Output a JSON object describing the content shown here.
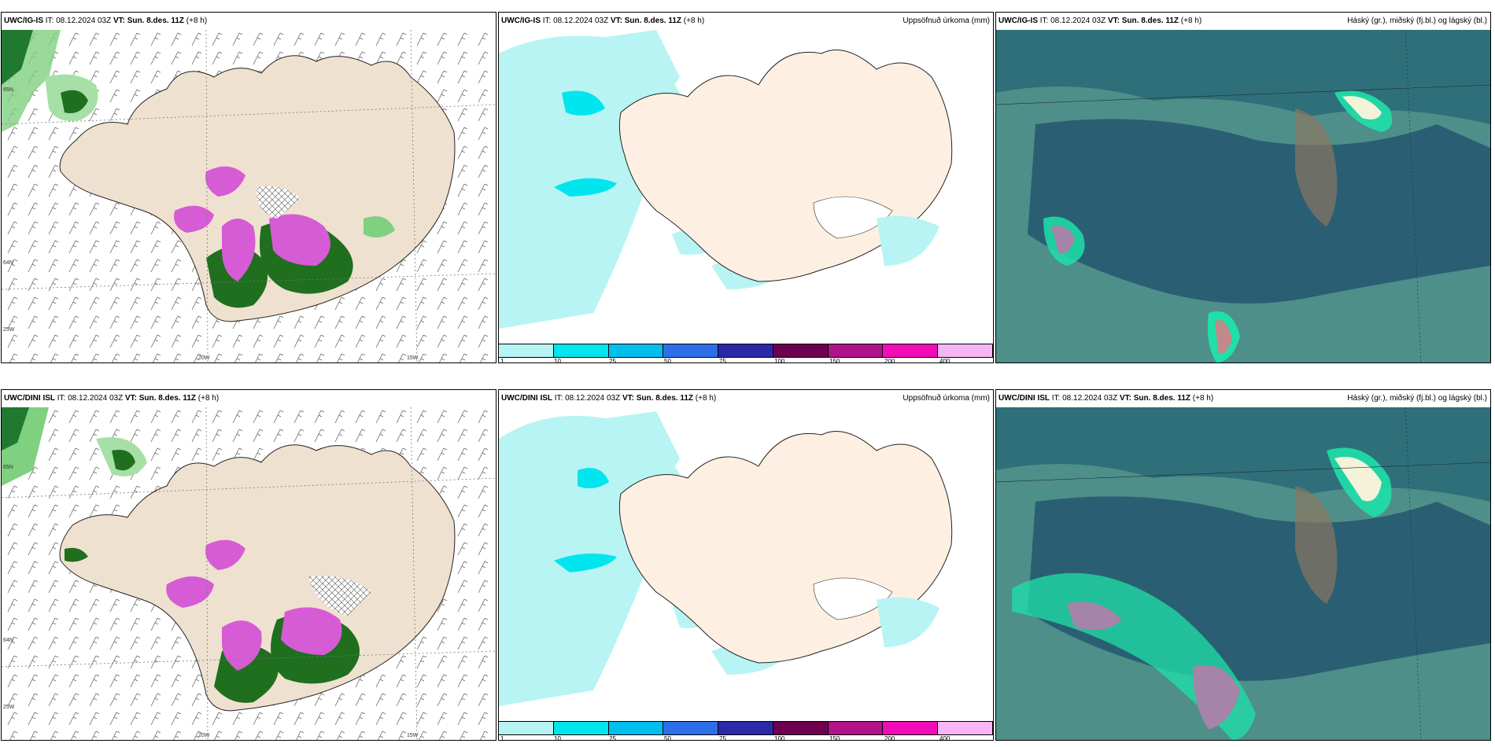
{
  "rows": [
    {
      "model": "UWC/IG-IS",
      "it_label": "IT:",
      "it_value": "08.12.2024 03Z",
      "vt_label": "VT:",
      "vt_value": "Sun. 8.des. 11Z",
      "lead": "(+8 h)"
    },
    {
      "model": "UWC/DINI ISL",
      "it_label": "IT:",
      "it_value": "08.12.2024 03Z",
      "vt_label": "VT:",
      "vt_value": "Sun. 8.des. 11Z",
      "lead": "(+8 h)"
    }
  ],
  "precip_title": "Uppsöfnuð úrkoma (mm)",
  "cloud_title": "Háský (gr.), miðský (fj.bl.) og lágský (bl.)",
  "legend": {
    "ticks": [
      "1",
      "10",
      "25",
      "50",
      "75",
      "100",
      "150",
      "200",
      "400"
    ],
    "colors": [
      "#b8f4f4",
      "#00e5ee",
      "#00bfef",
      "#2d6fe8",
      "#2a2aa8",
      "#6e0050",
      "#b0128a",
      "#f20cb8",
      "#f6b6f6"
    ]
  },
  "axis_labels": {
    "lon_20": "20W",
    "lon_15": "15W",
    "lon_25": "25W",
    "lat_64": "64N",
    "lat_65": "65N"
  },
  "colors": {
    "land": "#efe1cf",
    "precip_light": "#b8f4f4",
    "precip_mid": "#00e5ee",
    "snow_green": "#1f6f1f",
    "snow_pink": "#d65cd6",
    "cloud_base": "#2f6f7a"
  }
}
